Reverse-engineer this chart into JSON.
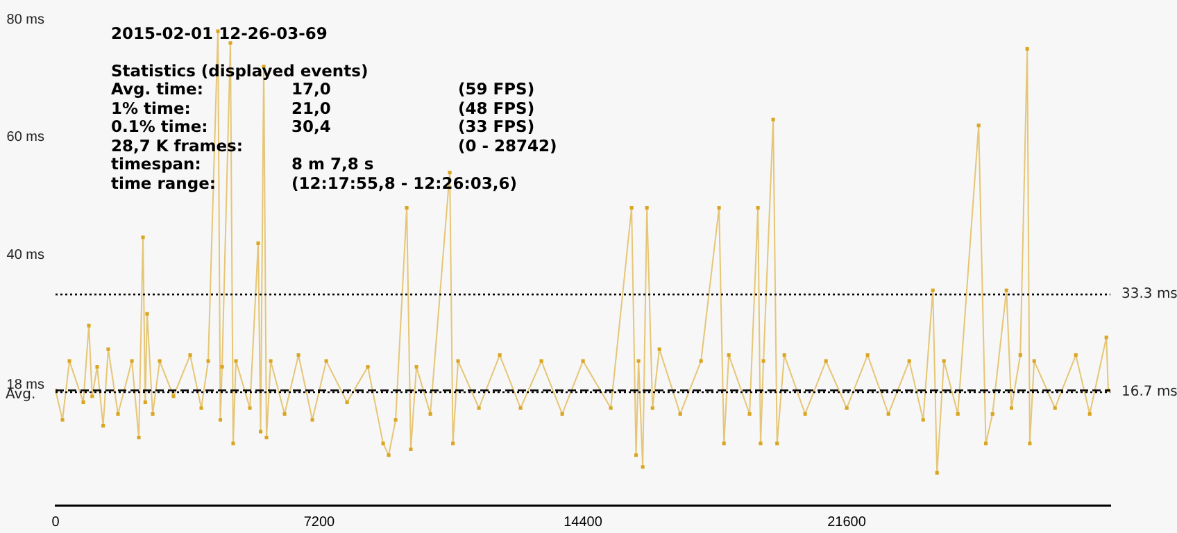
{
  "chart_data": {
    "type": "line",
    "title": "2015-02-01 12-26-03-69",
    "subtitle": "Statistics (displayed events)",
    "annotations": [
      "Avg. time:\t17,0\t(59 FPS)",
      "1% time:\t21,0\t(48 FPS)",
      "0.1% time:\t30,4\t(33 FPS)",
      "28,7 K frames:\t\t(0 - 28742)",
      "timespan:\t8 m 7,8 s\t",
      "time range:\t(12:17:55,8 - 12:26:03,6)\t"
    ],
    "x": [
      0,
      190,
      379,
      758,
      910,
      1000,
      1137,
      1300,
      1440,
      1706,
      2085,
      2274,
      2388,
      2450,
      2501,
      2653,
      2843,
      3222,
      3676,
      3980,
      4169,
      4434,
      4500,
      4548,
      4775,
      4850,
      4927,
      5306,
      5533,
      5600,
      5685,
      5760,
      5875,
      6254,
      6633,
      7012,
      7391,
      7959,
      8528,
      8944,
      9096,
      9286,
      9589,
      9700,
      9854,
      10233,
      10764,
      10850,
      10991,
      11560,
      12128,
      12697,
      13265,
      13834,
      14402,
      15160,
      15728,
      15850,
      15918,
      16032,
      16146,
      16300,
      16487,
      17055,
      17624,
      18116,
      18250,
      18382,
      18950,
      19177,
      19250,
      19329,
      19594,
      19700,
      19898,
      20466,
      21035,
      21603,
      22172,
      22740,
      23309,
      23688,
      23953,
      24067,
      24256,
      24635,
      25204,
      25400,
      25583,
      25962,
      26100,
      26341,
      26530,
      26600,
      26720,
      27288,
      27857,
      28236,
      28690,
      28742
    ],
    "series": [
      {
        "color": "#daa520",
        "values": [
          17,
          12,
          22,
          15,
          28,
          16,
          21,
          11,
          24,
          13,
          22,
          9,
          43,
          15,
          30,
          13,
          22,
          16,
          23,
          14,
          22,
          78,
          12,
          21,
          76,
          8,
          22,
          14,
          42,
          10,
          72,
          9,
          22,
          13,
          23,
          12,
          22,
          15,
          21,
          8,
          6,
          12,
          48,
          7,
          21,
          13,
          54,
          8,
          22,
          14,
          23,
          14,
          22,
          13,
          22,
          14,
          48,
          6,
          22,
          4,
          48,
          14,
          24,
          13,
          22,
          48,
          8,
          23,
          13,
          48,
          8,
          22,
          63,
          8,
          23,
          13,
          22,
          14,
          23,
          13,
          22,
          12,
          34,
          3,
          22,
          13,
          62,
          8,
          13,
          34,
          14,
          23,
          75,
          8,
          22,
          14,
          23,
          13,
          26,
          17
        ]
      }
    ],
    "xlim": [
      0,
      28800
    ],
    "xticks": [
      0,
      7200,
      14400,
      21600
    ],
    "ylim": [
      -2.5,
      80
    ],
    "yticks": [
      {
        "value": 18,
        "label": "18 ms"
      },
      {
        "value": 40,
        "label": "40 ms"
      },
      {
        "value": 60,
        "label": "60 ms"
      },
      {
        "value": 80,
        "label": "80 ms"
      }
    ],
    "ref_lines": [
      {
        "axis": "y",
        "value": 33.3,
        "label": "33.3 ms",
        "line_style": "dotted",
        "color": "#000000"
      },
      {
        "axis": "y",
        "value": 16.7,
        "label": "16.7 ms",
        "line_style": "dotted",
        "color": "#000000"
      },
      {
        "axis": "y",
        "value": 17.0,
        "label": "Avg.",
        "line_style": "dashed",
        "color": "#000000"
      }
    ],
    "marker": "square",
    "grid": false,
    "legend": false
  }
}
